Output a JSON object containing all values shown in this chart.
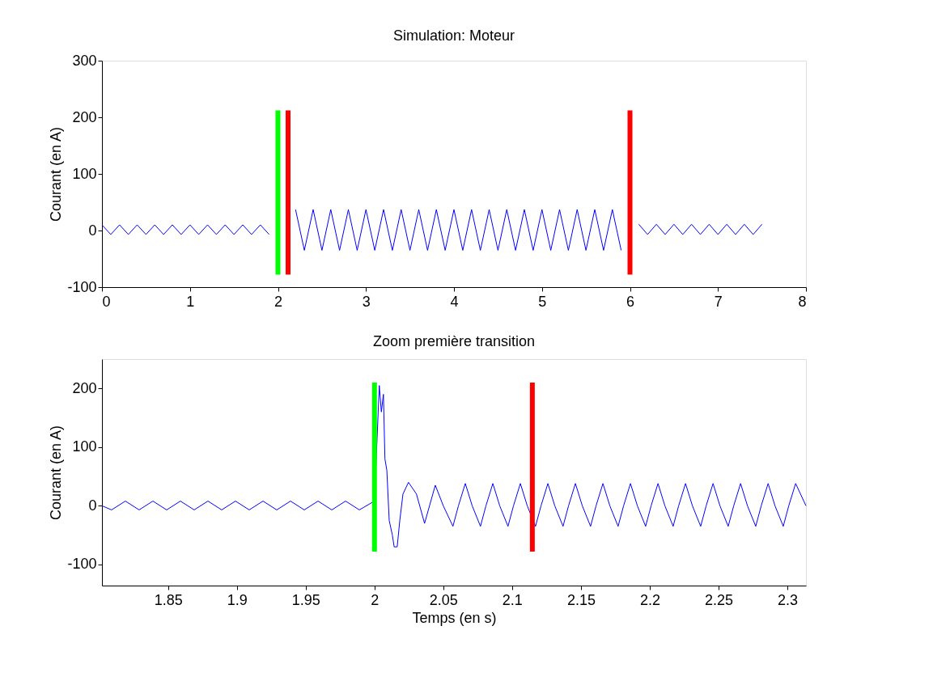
{
  "chart_data": [
    {
      "type": "line",
      "title": "Simulation: Moteur",
      "ylabel": "Courant (en A)",
      "xlim": [
        0,
        8
      ],
      "xticks": [
        0,
        1,
        2,
        3,
        4,
        5,
        6,
        7,
        8
      ],
      "ylim": [
        -100,
        300
      ],
      "yticks": [
        -100,
        0,
        100,
        200,
        300
      ],
      "series": [
        {
          "color": "#0000ff",
          "x": [
            0,
            0.1,
            0.2,
            0.3,
            0.4,
            0.5,
            0.6,
            0.7,
            0.8,
            0.9,
            1.0,
            1.1,
            1.2,
            1.3,
            1.4,
            1.5,
            1.6,
            1.7,
            1.8,
            1.9,
            2.0,
            2.05,
            2.1,
            2.2,
            2.3,
            2.4,
            2.5,
            2.6,
            2.7,
            2.8,
            2.9,
            3.0,
            3.1,
            3.2,
            3.3,
            3.4,
            3.5,
            3.6,
            3.7,
            3.8,
            3.9,
            4.0,
            4.1,
            4.2,
            4.3,
            4.4,
            4.5,
            4.6,
            4.7,
            4.8,
            4.9,
            5.0,
            5.1,
            5.2,
            5.3,
            5.4,
            5.5,
            5.6,
            5.7,
            5.8,
            5.9,
            6.0,
            6.1,
            6.2,
            6.3,
            6.4,
            6.5,
            6.6,
            6.7,
            6.8,
            6.9,
            7.0,
            7.1,
            7.2,
            7.3,
            7.4,
            7.5
          ],
          "values": [
            10,
            -7,
            10,
            -7,
            10,
            -7,
            10,
            -7,
            10,
            -7,
            10,
            -7,
            10,
            -7,
            10,
            -7,
            10,
            -7,
            10,
            -7,
            null,
            null,
            null,
            37,
            -35,
            37,
            -35,
            37,
            -35,
            37,
            -35,
            37,
            -35,
            37,
            -35,
            37,
            -35,
            37,
            -35,
            37,
            -35,
            37,
            -35,
            37,
            -35,
            37,
            -35,
            37,
            -35,
            37,
            -35,
            37,
            -35,
            37,
            -35,
            37,
            -35,
            37,
            -35,
            37,
            -35,
            null,
            11,
            -7,
            11,
            -7,
            11,
            -7,
            11,
            -7,
            11,
            -7,
            11,
            -7,
            11,
            -7,
            11
          ]
        },
        {
          "color": "#00ff00",
          "x": [
            2.0,
            2.0
          ],
          "values": [
            -78,
            212
          ]
        },
        {
          "color": "#ff0000",
          "x": [
            2.115,
            2.115
          ],
          "values": [
            -78,
            212
          ]
        },
        {
          "color": "#ff0000",
          "x": [
            6.0,
            6.0
          ],
          "values": [
            -78,
            212
          ]
        }
      ]
    },
    {
      "type": "line",
      "title": "Zoom première transition",
      "xlabel": "Temps (en s)",
      "ylabel": "Courant (en A)",
      "xlim": [
        1.802,
        2.3135
      ],
      "xticks": [
        1.85,
        1.9,
        1.95,
        2,
        2.05,
        2.1,
        2.15,
        2.2,
        2.25,
        2.3
      ],
      "ylim": [
        -136,
        250
      ],
      "yticks": [
        -100,
        0,
        100,
        200
      ],
      "series": [
        {
          "color": "#0000ff",
          "x": [
            1.802,
            1.809,
            1.819,
            1.829,
            1.839,
            1.849,
            1.859,
            1.869,
            1.879,
            1.889,
            1.899,
            1.909,
            1.919,
            1.929,
            1.939,
            1.949,
            1.959,
            1.969,
            1.979,
            1.989,
            2.0,
            2.0035,
            2.005,
            2.0065,
            2.0076,
            2.009,
            2.0107,
            2.013,
            2.0143,
            2.0165,
            2.0184,
            2.0207,
            2.0247,
            2.0305,
            2.0364,
            2.0442,
            2.05,
            2.057,
            2.061,
            2.066,
            2.071,
            2.077,
            2.081,
            2.086,
            2.091,
            2.097,
            2.101,
            2.106,
            2.111,
            2.117,
            2.121,
            2.126,
            2.131,
            2.137,
            2.141,
            2.146,
            2.151,
            2.157,
            2.161,
            2.166,
            2.171,
            2.177,
            2.181,
            2.186,
            2.191,
            2.197,
            2.201,
            2.206,
            2.211,
            2.217,
            2.221,
            2.226,
            2.231,
            2.237,
            2.241,
            2.246,
            2.251,
            2.257,
            2.261,
            2.266,
            2.271,
            2.277,
            2.281,
            2.286,
            2.291,
            2.297,
            2.301,
            2.306,
            2.3135
          ],
          "values": [
            0,
            -7,
            8,
            -7,
            8,
            -7,
            8,
            -7,
            8,
            -7,
            8,
            -7,
            8,
            -7,
            8,
            -7,
            8,
            -7,
            8,
            -7,
            8,
            205,
            160,
            190,
            80,
            60,
            -25,
            -50,
            -70,
            -70,
            -25,
            20,
            40,
            20,
            -30,
            35,
            0,
            -35,
            0,
            38,
            0,
            -35,
            0,
            38,
            0,
            -35,
            0,
            38,
            0,
            -35,
            0,
            38,
            0,
            -35,
            0,
            38,
            0,
            -35,
            0,
            38,
            0,
            -35,
            0,
            38,
            0,
            -35,
            0,
            38,
            0,
            -35,
            0,
            38,
            0,
            -35,
            0,
            38,
            0,
            -35,
            0,
            38,
            0,
            -35,
            0,
            38,
            0,
            -35,
            0,
            38,
            0
          ]
        },
        {
          "color": "#00ff00",
          "x": [
            2.0,
            2.0
          ],
          "values": [
            -78,
            210
          ]
        },
        {
          "color": "#ff0000",
          "x": [
            2.1147,
            2.1147
          ],
          "values": [
            -78,
            210
          ]
        }
      ]
    }
  ]
}
